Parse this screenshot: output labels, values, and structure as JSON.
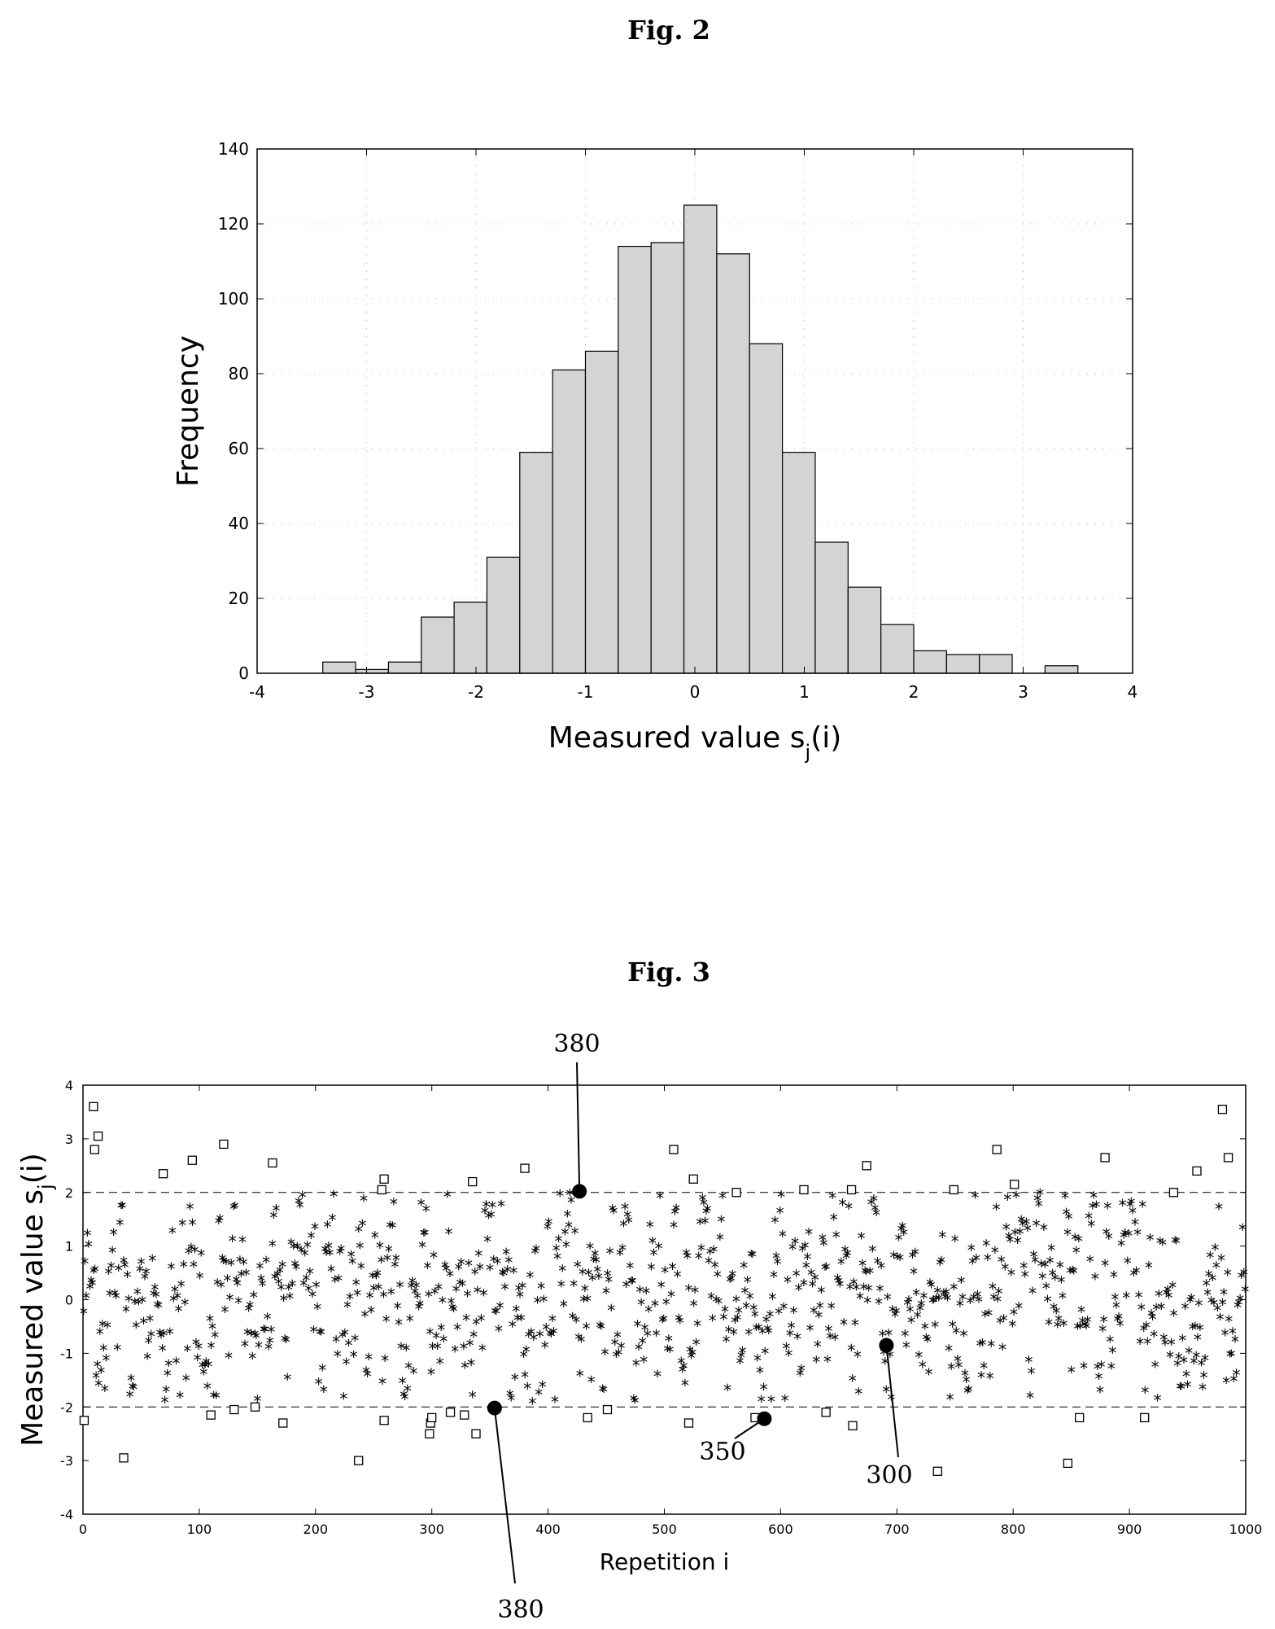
{
  "figures": {
    "fig2": {
      "title": "Fig. 2"
    },
    "fig3": {
      "title": "Fig. 3"
    }
  },
  "chart_data": [
    {
      "type": "bar",
      "title": "Fig. 2",
      "xlabel": "Measured value s",
      "xlabel_subscript": "j",
      "xlabel_suffix": "(i)",
      "ylabel": "Frequency",
      "xlim": [
        -4,
        4
      ],
      "ylim": [
        0,
        140
      ],
      "xticks": [
        -4,
        -3,
        -2,
        -1,
        0,
        1,
        2,
        3,
        4
      ],
      "yticks": [
        0,
        20,
        40,
        60,
        80,
        100,
        120,
        140
      ],
      "grid": "dotted",
      "bin_edges": [
        -4.0,
        -3.7,
        -3.4,
        -3.1,
        -2.8,
        -2.5,
        -2.2,
        -1.9,
        -1.6,
        -1.3,
        -1.0,
        -0.7,
        -0.4,
        -0.1,
        0.2,
        0.5,
        0.8,
        1.1,
        1.4,
        1.7,
        2.0,
        2.3,
        2.6,
        2.9,
        3.2,
        3.5,
        3.8
      ],
      "values": [
        0,
        0,
        3,
        1,
        3,
        15,
        19,
        31,
        59,
        81,
        86,
        114,
        115,
        125,
        112,
        88,
        59,
        35,
        23,
        13,
        6,
        5,
        5,
        0,
        2,
        0
      ]
    },
    {
      "type": "scatter",
      "title": "Fig. 3",
      "xlabel": "Repetition i",
      "ylabel": "Measured value s",
      "ylabel_subscript": "j",
      "ylabel_suffix": "(i)",
      "xlim": [
        0,
        1000
      ],
      "ylim": [
        -4,
        4
      ],
      "xticks": [
        0,
        100,
        200,
        300,
        400,
        500,
        600,
        700,
        800,
        900,
        1000
      ],
      "yticks": [
        -4,
        -3,
        -2,
        -1,
        0,
        1,
        2,
        3,
        4
      ],
      "threshold_lines": [
        2,
        -2
      ],
      "star_count": 930,
      "outlier_squares": [
        {
          "x": 1,
          "y": -2.25
        },
        {
          "x": 9,
          "y": 3.6
        },
        {
          "x": 10,
          "y": 2.8
        },
        {
          "x": 13,
          "y": 3.05
        },
        {
          "x": 35,
          "y": -2.95
        },
        {
          "x": 69,
          "y": 2.35
        },
        {
          "x": 94,
          "y": 2.6
        },
        {
          "x": 110,
          "y": -2.15
        },
        {
          "x": 121,
          "y": 2.9
        },
        {
          "x": 130,
          "y": -2.05
        },
        {
          "x": 148,
          "y": -2.0
        },
        {
          "x": 163,
          "y": 2.55
        },
        {
          "x": 172,
          "y": -2.3
        },
        {
          "x": 237,
          "y": -3.0
        },
        {
          "x": 257,
          "y": 2.05
        },
        {
          "x": 259,
          "y": 2.25
        },
        {
          "x": 259,
          "y": -2.25
        },
        {
          "x": 298,
          "y": -2.5
        },
        {
          "x": 299,
          "y": -2.3
        },
        {
          "x": 300,
          "y": -2.2
        },
        {
          "x": 316,
          "y": -2.1
        },
        {
          "x": 328,
          "y": -2.15
        },
        {
          "x": 335,
          "y": 2.2
        },
        {
          "x": 338,
          "y": -2.5
        },
        {
          "x": 380,
          "y": 2.45
        },
        {
          "x": 434,
          "y": -2.2
        },
        {
          "x": 451,
          "y": -2.05
        },
        {
          "x": 508,
          "y": 2.8
        },
        {
          "x": 521,
          "y": -2.3
        },
        {
          "x": 525,
          "y": 2.25
        },
        {
          "x": 562,
          "y": 2.0
        },
        {
          "x": 578,
          "y": -2.2
        },
        {
          "x": 620,
          "y": 2.05
        },
        {
          "x": 639,
          "y": -2.1
        },
        {
          "x": 661,
          "y": 2.05
        },
        {
          "x": 662,
          "y": -2.35
        },
        {
          "x": 674,
          "y": 2.5
        },
        {
          "x": 735,
          "y": -3.2
        },
        {
          "x": 749,
          "y": 2.05
        },
        {
          "x": 786,
          "y": 2.8
        },
        {
          "x": 801,
          "y": 2.15
        },
        {
          "x": 847,
          "y": -3.05
        },
        {
          "x": 857,
          "y": -2.2
        },
        {
          "x": 879,
          "y": 2.65
        },
        {
          "x": 913,
          "y": -2.2
        },
        {
          "x": 938,
          "y": 2.0
        },
        {
          "x": 958,
          "y": 2.4
        },
        {
          "x": 980,
          "y": 3.55
        },
        {
          "x": 985,
          "y": 2.65
        }
      ],
      "highlighted_points": [
        {
          "x": 427,
          "y": 2.02,
          "label": "380"
        },
        {
          "x": 354,
          "y": -2.02,
          "label": "380"
        },
        {
          "x": 586,
          "y": -2.22,
          "label": "350"
        },
        {
          "x": 691,
          "y": -0.85,
          "label": "300"
        }
      ]
    }
  ]
}
